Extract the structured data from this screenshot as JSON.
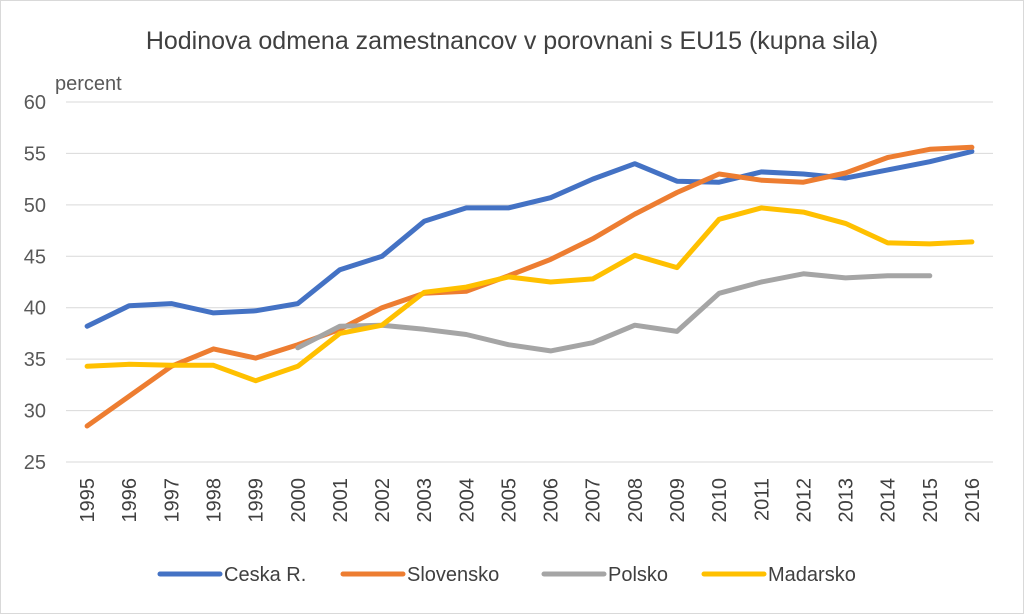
{
  "chart_data": {
    "type": "line",
    "title": "Hodinova  odmena zamestnancov v porovnani  s EU15 (kupna sila)",
    "ylabel": "percent",
    "xlabel": "",
    "ylim": [
      25,
      60
    ],
    "yticks": [
      25,
      30,
      35,
      40,
      45,
      50,
      55,
      60
    ],
    "grid": true,
    "legend_position": "bottom",
    "categories": [
      "1995",
      "1996",
      "1997",
      "1998",
      "1999",
      "2000",
      "2001",
      "2002",
      "2003",
      "2004",
      "2005",
      "2006",
      "2007",
      "2008",
      "2009",
      "2010",
      "2011",
      "2012",
      "2013",
      "2014",
      "2015",
      "2016"
    ],
    "series": [
      {
        "name": "Ceska R.",
        "color": "#4472c4",
        "values": [
          38.2,
          40.2,
          40.4,
          39.5,
          39.7,
          40.4,
          43.7,
          45.0,
          48.4,
          49.7,
          49.7,
          50.7,
          52.5,
          54.0,
          52.3,
          52.2,
          53.2,
          53.0,
          52.6,
          53.4,
          54.2,
          55.2
        ]
      },
      {
        "name": "Slovensko",
        "color": "#ed7d31",
        "values": [
          28.5,
          31.4,
          34.3,
          36.0,
          35.1,
          36.4,
          37.9,
          40.0,
          41.4,
          41.6,
          43.1,
          44.7,
          46.7,
          49.1,
          51.2,
          53.0,
          52.4,
          52.2,
          53.1,
          54.6,
          55.4,
          55.6
        ]
      },
      {
        "name": "Polsko",
        "color": "#a5a5a5",
        "values": [
          null,
          null,
          null,
          null,
          null,
          36.1,
          38.2,
          38.3,
          37.9,
          37.4,
          36.4,
          35.8,
          36.6,
          38.3,
          37.7,
          41.4,
          42.5,
          43.3,
          42.9,
          43.1,
          43.1,
          null
        ]
      },
      {
        "name": "Madarsko",
        "color": "#ffc000",
        "values": [
          34.3,
          34.5,
          34.4,
          34.4,
          32.9,
          34.3,
          37.5,
          38.3,
          41.5,
          42.0,
          43.0,
          42.5,
          42.8,
          45.1,
          43.9,
          48.6,
          49.7,
          49.3,
          48.2,
          46.3,
          46.2,
          46.4
        ]
      }
    ]
  }
}
